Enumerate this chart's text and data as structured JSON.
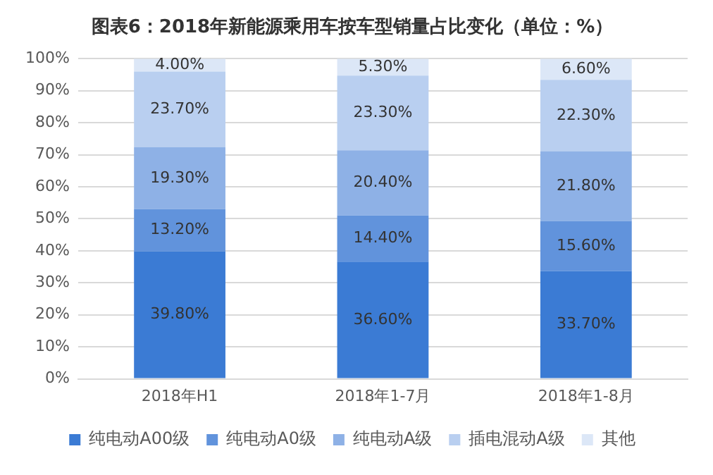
{
  "chart_data": {
    "type": "bar",
    "title": "图表6：2018年新能源乘用车按车型销量占比变化（单位：%）",
    "stacked": true,
    "categories": [
      "2018年H1",
      "2018年1-7月",
      "2018年1-8月"
    ],
    "series": [
      {
        "name": "纯电动A00级",
        "color": "#3b7bd4",
        "values": [
          39.8,
          36.6,
          33.7
        ],
        "value_labels": [
          "39.80%",
          "36.60%",
          "33.70%"
        ]
      },
      {
        "name": "纯电动A0级",
        "color": "#6193dc",
        "values": [
          13.2,
          14.4,
          15.6
        ],
        "value_labels": [
          "13.20%",
          "14.40%",
          "15.60%"
        ]
      },
      {
        "name": "纯电动A级",
        "color": "#8eb1e6",
        "values": [
          19.3,
          20.4,
          21.8
        ],
        "value_labels": [
          "19.30%",
          "20.40%",
          "21.80%"
        ]
      },
      {
        "name": "插电混动A级",
        "color": "#b9cff0",
        "values": [
          23.7,
          23.3,
          22.3
        ],
        "value_labels": [
          "23.70%",
          "23.30%",
          "22.30%"
        ]
      },
      {
        "name": "其他",
        "color": "#dce7f7",
        "values": [
          4.0,
          5.3,
          6.6
        ],
        "value_labels": [
          "4.00%",
          "5.30%",
          "6.60%"
        ]
      }
    ],
    "ylim": [
      0,
      100
    ],
    "yticks": [
      {
        "value": 0,
        "label": "0%"
      },
      {
        "value": 10,
        "label": "10%"
      },
      {
        "value": 20,
        "label": "20%"
      },
      {
        "value": 30,
        "label": "30%"
      },
      {
        "value": 40,
        "label": "40%"
      },
      {
        "value": 50,
        "label": "50%"
      },
      {
        "value": 60,
        "label": "60%"
      },
      {
        "value": 70,
        "label": "70%"
      },
      {
        "value": 80,
        "label": "80%"
      },
      {
        "value": 90,
        "label": "90%"
      },
      {
        "value": 100,
        "label": "100%"
      }
    ],
    "grid": "y",
    "legend": "bottom"
  }
}
